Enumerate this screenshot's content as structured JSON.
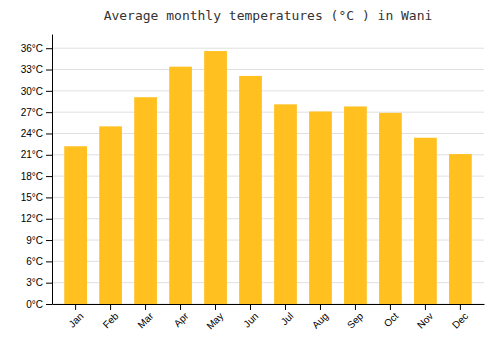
{
  "chart_data": {
    "type": "bar",
    "title": "Average monthly temperatures (°C ) in Wani",
    "categories": [
      "Jan",
      "Feb",
      "Mar",
      "Apr",
      "May",
      "Jun",
      "Jul",
      "Aug",
      "Sep",
      "Oct",
      "Nov",
      "Dec"
    ],
    "values": [
      22.2,
      25.0,
      29.1,
      33.4,
      35.6,
      32.1,
      28.1,
      27.1,
      27.8,
      26.9,
      23.4,
      21.1
    ],
    "color": "#FFC020",
    "ylim": [
      0,
      38
    ],
    "yticks": [
      {
        "value": 0,
        "label": "0°C"
      },
      {
        "value": 3,
        "label": "3°C"
      },
      {
        "value": 6,
        "label": "6°C"
      },
      {
        "value": 9,
        "label": "9°C"
      },
      {
        "value": 12,
        "label": "12°C"
      },
      {
        "value": 15,
        "label": "15°C"
      },
      {
        "value": 18,
        "label": "18°C"
      },
      {
        "value": 21,
        "label": "21°C"
      },
      {
        "value": 24,
        "label": "24°C"
      },
      {
        "value": 27,
        "label": "27°C"
      },
      {
        "value": 30,
        "label": "30°C"
      },
      {
        "value": 33,
        "label": "33°C"
      },
      {
        "value": 36,
        "label": "36°C"
      }
    ],
    "grid": true
  }
}
